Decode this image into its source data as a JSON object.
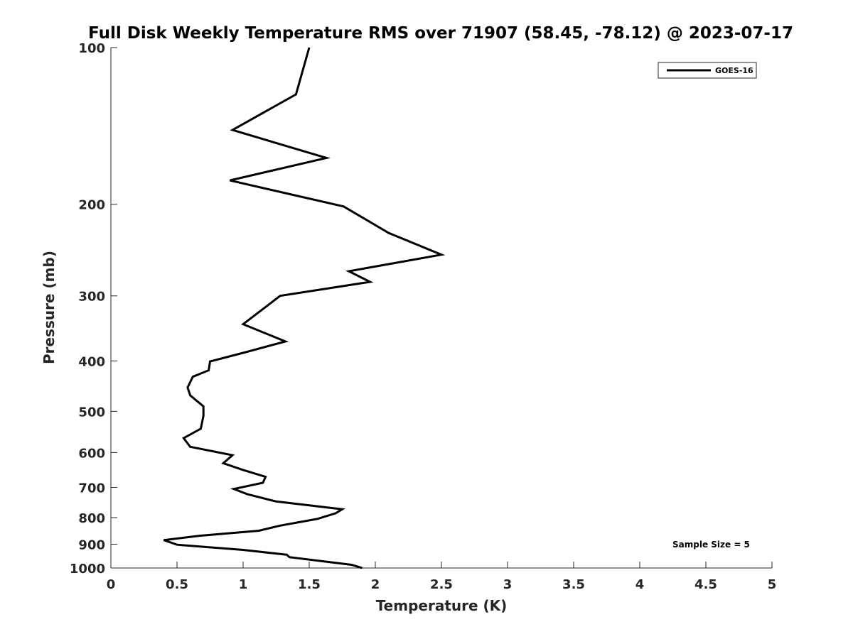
{
  "chart_data": {
    "type": "line",
    "title": "Full Disk Weekly Temperature RMS over 71907 (58.45, -78.12) @ 2023-07-17",
    "xlabel": "Temperature (K)",
    "ylabel": "Pressure (mb)",
    "xlim": [
      0,
      5
    ],
    "ylim": [
      100,
      1000
    ],
    "y_scale": "log",
    "y_reversed": true,
    "x_ticks": [
      "0",
      "0.5",
      "1",
      "1.5",
      "2",
      "2.5",
      "3",
      "3.5",
      "4",
      "4.5",
      "5"
    ],
    "y_ticks": [
      "100",
      "200",
      "300",
      "400",
      "500",
      "600",
      "700",
      "800",
      "900",
      "1000"
    ],
    "grid": false,
    "legend_position": "top-right",
    "series": [
      {
        "name": "GOES-16",
        "color": "#000000",
        "x": [
          1.5,
          1.4,
          0.92,
          1.63,
          0.9,
          1.76,
          2.1,
          2.5,
          1.8,
          1.96,
          1.28,
          1.0,
          1.32,
          1.0,
          0.75,
          0.74,
          0.62,
          0.58,
          0.6,
          0.7,
          0.7,
          0.68,
          0.55,
          0.6,
          0.92,
          0.85,
          1.0,
          1.17,
          1.15,
          0.93,
          1.03,
          1.25,
          1.75,
          1.7,
          1.56,
          1.28,
          1.12,
          0.67,
          0.4,
          0.5,
          1.0,
          1.33,
          1.35,
          1.82,
          1.9
        ],
        "y": [
          100,
          123,
          144,
          163,
          180,
          202,
          227,
          250,
          269,
          282,
          300,
          340,
          367,
          386,
          401,
          417,
          429,
          450,
          466,
          489,
          510,
          540,
          563,
          585,
          607,
          629,
          648,
          668,
          686,
          705,
          721,
          745,
          771,
          785,
          805,
          829,
          848,
          867,
          884,
          902,
          923,
          943,
          953,
          986,
          1000
        ]
      }
    ],
    "annotations": [
      "Sample Size = 5"
    ]
  }
}
